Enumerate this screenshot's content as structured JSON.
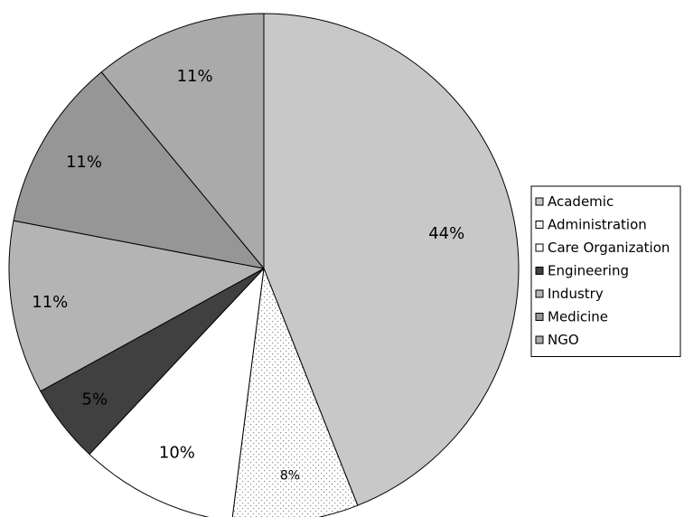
{
  "chart_data": {
    "type": "pie",
    "title": "",
    "legend_position": "right",
    "slices": [
      {
        "label": "Academic",
        "value": 44,
        "display": "44%",
        "color": "#c8c8c8",
        "pattern": "solid"
      },
      {
        "label": "Administration",
        "value": 8,
        "display": "8%",
        "color": "#ffffff",
        "pattern": "dotted"
      },
      {
        "label": "Care Organization",
        "value": 10,
        "display": "10%",
        "color": "#ffffff",
        "pattern": "solid"
      },
      {
        "label": "Engineering",
        "value": 5,
        "display": "5%",
        "color": "#404040",
        "pattern": "solid"
      },
      {
        "label": "Industry",
        "value": 11,
        "display": "11%",
        "color": "#b4b4b4",
        "pattern": "solid"
      },
      {
        "label": "Medicine",
        "value": 11,
        "display": "11%",
        "color": "#969696",
        "pattern": "solid"
      },
      {
        "label": "NGO",
        "value": 11,
        "display": "11%",
        "color": "#aaaaaa",
        "pattern": "solid"
      }
    ]
  }
}
